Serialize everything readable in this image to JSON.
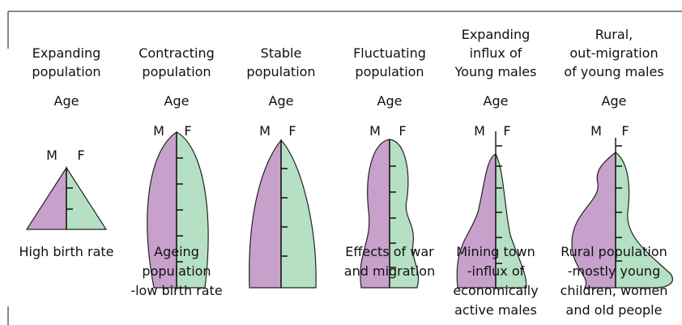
{
  "columns": [
    {
      "title": [
        "Expanding",
        "population"
      ],
      "age": "Age",
      "male": "M",
      "female": "F",
      "caption": [
        "High birth rate"
      ]
    },
    {
      "title": [
        "Contracting",
        "population"
      ],
      "age": "Age",
      "male": "M",
      "female": "F",
      "caption": [
        "Ageing",
        "population",
        "-low birth rate"
      ]
    },
    {
      "title": [
        "Stable",
        "population"
      ],
      "age": "Age",
      "male": "M",
      "female": "F",
      "caption": []
    },
    {
      "title": [
        "Fluctuating",
        "population"
      ],
      "age": "Age",
      "male": "M",
      "female": "F",
      "caption": [
        "Effects of war",
        "and migration"
      ]
    },
    {
      "title": [
        "Expanding",
        "influx of",
        "Young males"
      ],
      "age": "Age",
      "male": "M",
      "female": "F",
      "caption": [
        "Mining town",
        "-influx of",
        "economically",
        "active males"
      ]
    },
    {
      "title": [
        "Rural,",
        "out-migration",
        "of young males"
      ],
      "age": "Age",
      "male": "M",
      "female": "F",
      "caption": [
        "Rural population",
        "-mostly young",
        "children, women",
        "and old people"
      ]
    }
  ]
}
